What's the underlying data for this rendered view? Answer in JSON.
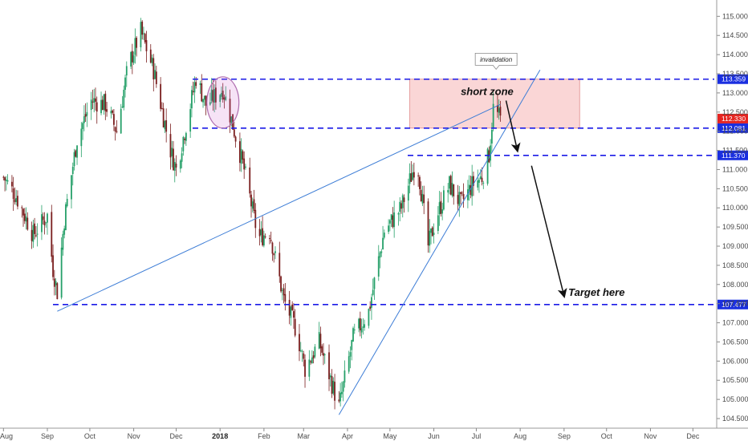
{
  "chart_data": {
    "type": "candlestick",
    "y_axis": {
      "position": "right",
      "ticks": [
        "104.500",
        "105.000",
        "105.500",
        "106.000",
        "106.500",
        "107.000",
        "107.500",
        "108.000",
        "108.500",
        "109.000",
        "109.500",
        "110.000",
        "110.500",
        "111.000",
        "111.500",
        "112.000",
        "112.500",
        "113.000",
        "113.500",
        "114.000",
        "114.500",
        "115.000"
      ],
      "range": [
        104.27,
        115.3
      ]
    },
    "x_axis": {
      "ticks": [
        {
          "label": "Aug",
          "bold": false
        },
        {
          "label": "Sep",
          "bold": false
        },
        {
          "label": "Oct",
          "bold": false
        },
        {
          "label": "Nov",
          "bold": false
        },
        {
          "label": "Dec",
          "bold": false
        },
        {
          "label": "2018",
          "bold": true
        },
        {
          "label": "Feb",
          "bold": false
        },
        {
          "label": "Mar",
          "bold": false
        },
        {
          "label": "Apr",
          "bold": false
        },
        {
          "label": "May",
          "bold": false
        },
        {
          "label": "Jun",
          "bold": false
        },
        {
          "label": "Jul",
          "bold": false
        },
        {
          "label": "Aug",
          "bold": false
        },
        {
          "label": "Sep",
          "bold": false
        },
        {
          "label": "Oct",
          "bold": false
        },
        {
          "label": "Nov",
          "bold": false
        },
        {
          "label": "Dec",
          "bold": false
        }
      ]
    },
    "colors": {
      "up": "#26a069",
      "down": "#7a1e1e",
      "level_line": "#1a1ae6",
      "trend_line": "#3d7dd6",
      "zone_fill": "#f8c8c8",
      "current_tag": "#e52521"
    },
    "price_path": [
      {
        "date": "2017-08-01",
        "price": 110.8
      },
      {
        "date": "2017-08-10",
        "price": 110.3
      },
      {
        "date": "2017-08-22",
        "price": 109.3
      },
      {
        "date": "2017-09-01",
        "price": 109.8
      },
      {
        "date": "2017-09-05",
        "price": 108.4
      },
      {
        "date": "2017-09-08",
        "price": 107.8
      },
      {
        "date": "2017-09-13",
        "price": 109.7
      },
      {
        "date": "2017-09-22",
        "price": 111.8
      },
      {
        "date": "2017-10-02",
        "price": 112.8
      },
      {
        "date": "2017-10-12",
        "price": 112.7
      },
      {
        "date": "2017-10-20",
        "price": 112.0
      },
      {
        "date": "2017-10-28",
        "price": 113.7
      },
      {
        "date": "2017-11-06",
        "price": 114.6
      },
      {
        "date": "2017-11-15",
        "price": 113.6
      },
      {
        "date": "2017-11-27",
        "price": 111.5
      },
      {
        "date": "2017-12-01",
        "price": 111.0
      },
      {
        "date": "2017-12-10",
        "price": 112.5
      },
      {
        "date": "2017-12-15",
        "price": 113.4
      },
      {
        "date": "2017-12-22",
        "price": 112.7
      },
      {
        "date": "2018-01-03",
        "price": 113.1
      },
      {
        "date": "2018-01-09",
        "price": 112.3
      },
      {
        "date": "2018-01-18",
        "price": 111.0
      },
      {
        "date": "2018-01-28",
        "price": 109.2
      },
      {
        "date": "2018-02-05",
        "price": 109.4
      },
      {
        "date": "2018-02-15",
        "price": 107.6
      },
      {
        "date": "2018-02-24",
        "price": 106.8
      },
      {
        "date": "2018-03-02",
        "price": 105.8
      },
      {
        "date": "2018-03-12",
        "price": 106.5
      },
      {
        "date": "2018-03-26",
        "price": 104.8
      },
      {
        "date": "2018-04-05",
        "price": 106.6
      },
      {
        "date": "2018-04-16",
        "price": 107.3
      },
      {
        "date": "2018-04-27",
        "price": 109.4
      },
      {
        "date": "2018-05-09",
        "price": 110.0
      },
      {
        "date": "2018-05-20",
        "price": 111.3
      },
      {
        "date": "2018-05-28",
        "price": 109.0
      },
      {
        "date": "2018-06-03",
        "price": 109.8
      },
      {
        "date": "2018-06-12",
        "price": 110.6
      },
      {
        "date": "2018-06-20",
        "price": 110.1
      },
      {
        "date": "2018-06-28",
        "price": 110.6
      },
      {
        "date": "2018-07-05",
        "price": 110.8
      },
      {
        "date": "2018-07-10",
        "price": 111.4
      },
      {
        "date": "2018-07-13",
        "price": 112.6
      },
      {
        "date": "2018-07-18",
        "price": 112.3
      }
    ],
    "horizontal_levels": [
      {
        "price": 113.359,
        "label": "113.359",
        "extent": "right"
      },
      {
        "price": 112.081,
        "label": "112.081",
        "extent": "right"
      },
      {
        "price": 111.37,
        "label": "111.370",
        "extent": "right"
      },
      {
        "price": 107.477,
        "label": "107.477",
        "extent": "full"
      }
    ],
    "current_price": {
      "price": 112.33,
      "label": "112.330"
    },
    "trend_lines": [
      {
        "from": {
          "date": "2017-09-08",
          "price": 107.3
        },
        "to": {
          "date": "2018-07-18",
          "price": 112.7
        }
      },
      {
        "from": {
          "date": "2018-03-26",
          "price": 104.6
        },
        "to": {
          "date": "2018-08-15",
          "price": 113.6
        }
      }
    ],
    "zone": {
      "date_from": "2018-05-15",
      "date_to": "2018-09-12",
      "price_from": 112.081,
      "price_to": 113.359,
      "label": "short zone"
    },
    "annotations": {
      "callout": "invalidation",
      "target": "Target here"
    }
  }
}
